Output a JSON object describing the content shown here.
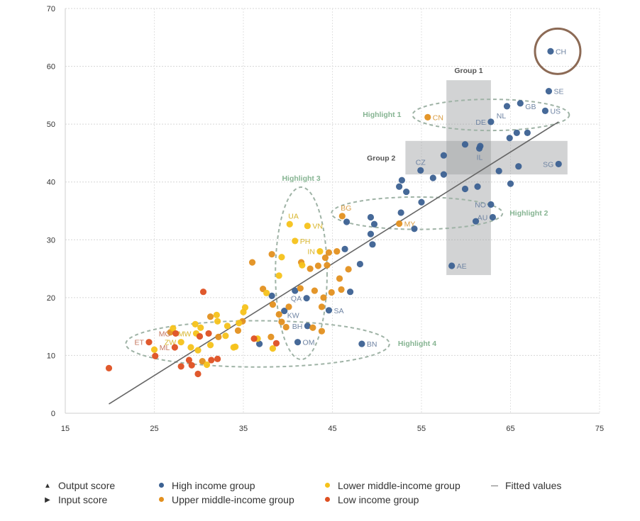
{
  "chart_data": {
    "type": "scatter",
    "title": "",
    "xlabel": "",
    "ylabel": "",
    "xlim": [
      15,
      75
    ],
    "ylim": [
      0,
      70
    ],
    "x_ticks": [
      "15",
      "25",
      "35",
      "45",
      "55",
      "65",
      "75"
    ],
    "y_ticks": [
      "0",
      "10",
      "20",
      "30",
      "40",
      "50",
      "60",
      "70"
    ],
    "grid": true,
    "legend_position": "bottom",
    "colors": {
      "high": "#3c6192",
      "upper": "#e3901f",
      "lower": "#f6c21a",
      "low": "#de5022",
      "fit": "#666666",
      "highlight": "#86b492",
      "group": "#9c9da0",
      "ch_circle": "#8c6a55"
    },
    "series": [
      {
        "name": "High income group",
        "key": "high",
        "points": [
          [
            69.5,
            62.6,
            "CH"
          ],
          [
            69.3,
            55.7,
            "SE"
          ],
          [
            66.1,
            53.6,
            "GB"
          ],
          [
            64.6,
            53.1,
            "NL"
          ],
          [
            68.9,
            52.3,
            "US"
          ],
          [
            62.8,
            50.4,
            "DE"
          ],
          [
            64.9,
            47.6,
            ""
          ],
          [
            65.7,
            48.5,
            ""
          ],
          [
            66.9,
            48.5,
            ""
          ],
          [
            59.9,
            46.5,
            ""
          ],
          [
            61.6,
            46.2,
            ""
          ],
          [
            61.5,
            45.8,
            "IL"
          ],
          [
            57.5,
            44.6,
            ""
          ],
          [
            57.5,
            41.3,
            ""
          ],
          [
            56.3,
            40.7,
            ""
          ],
          [
            54.9,
            42.0,
            "CZ"
          ],
          [
            59.9,
            38.8,
            ""
          ],
          [
            61.3,
            39.2,
            ""
          ],
          [
            63.7,
            41.9,
            ""
          ],
          [
            65.9,
            42.7,
            ""
          ],
          [
            65.0,
            39.7,
            ""
          ],
          [
            70.4,
            43.1,
            "SG"
          ],
          [
            52.8,
            40.3,
            ""
          ],
          [
            52.5,
            39.2,
            ""
          ],
          [
            53.3,
            38.3,
            ""
          ],
          [
            55.0,
            36.5,
            ""
          ],
          [
            52.7,
            34.7,
            ""
          ],
          [
            49.7,
            32.7,
            ""
          ],
          [
            49.3,
            33.9,
            ""
          ],
          [
            49.3,
            31.0,
            ""
          ],
          [
            49.5,
            29.2,
            ""
          ],
          [
            46.4,
            28.4,
            ""
          ],
          [
            48.1,
            25.8,
            ""
          ],
          [
            46.6,
            33.1,
            ""
          ],
          [
            54.2,
            31.9,
            ""
          ],
          [
            62.8,
            36.1,
            "NO"
          ],
          [
            63.0,
            33.9,
            "AU"
          ],
          [
            61.1,
            33.2,
            ""
          ],
          [
            58.4,
            25.5,
            "AE"
          ],
          [
            47.0,
            21.0,
            ""
          ],
          [
            42.1,
            19.9,
            "QA"
          ],
          [
            40.8,
            21.2,
            ""
          ],
          [
            38.2,
            20.3,
            ""
          ],
          [
            44.6,
            17.8,
            "SA"
          ],
          [
            39.6,
            17.7,
            "KW"
          ],
          [
            42.2,
            15.1,
            "BH"
          ],
          [
            41.1,
            12.3,
            "OM"
          ],
          [
            36.8,
            12.0,
            ""
          ],
          [
            48.3,
            12.0,
            "BN"
          ]
        ]
      },
      {
        "name": "Upper middle-income group",
        "key": "upper",
        "points": [
          [
            55.7,
            51.2,
            "CN"
          ],
          [
            46.1,
            34.1,
            "BG"
          ],
          [
            52.5,
            32.8,
            "MY"
          ],
          [
            38.2,
            27.5,
            ""
          ],
          [
            36.0,
            26.1,
            ""
          ],
          [
            41.5,
            26.1,
            ""
          ],
          [
            42.5,
            25.0,
            ""
          ],
          [
            43.4,
            25.5,
            ""
          ],
          [
            44.2,
            26.9,
            ""
          ],
          [
            44.6,
            27.8,
            ""
          ],
          [
            44.4,
            25.6,
            ""
          ],
          [
            45.5,
            28.0,
            ""
          ],
          [
            46.8,
            24.9,
            ""
          ],
          [
            45.8,
            23.3,
            ""
          ],
          [
            46.0,
            21.4,
            ""
          ],
          [
            43.0,
            21.2,
            ""
          ],
          [
            41.4,
            21.6,
            ""
          ],
          [
            37.2,
            21.5,
            ""
          ],
          [
            44.0,
            20.0,
            ""
          ],
          [
            44.9,
            20.9,
            ""
          ],
          [
            38.3,
            18.8,
            ""
          ],
          [
            40.1,
            18.4,
            ""
          ],
          [
            43.8,
            18.4,
            ""
          ],
          [
            39.0,
            17.1,
            ""
          ],
          [
            39.3,
            15.8,
            ""
          ],
          [
            39.8,
            14.9,
            ""
          ],
          [
            42.8,
            14.8,
            ""
          ],
          [
            43.8,
            14.2,
            ""
          ],
          [
            38.1,
            13.2,
            ""
          ],
          [
            34.4,
            14.3,
            ""
          ],
          [
            34.9,
            15.9,
            ""
          ],
          [
            31.3,
            16.7,
            ""
          ],
          [
            32.2,
            13.2,
            ""
          ],
          [
            30.4,
            9.0,
            ""
          ],
          [
            26.8,
            14.0,
            ""
          ]
        ]
      },
      {
        "name": "Lower middle-income group",
        "key": "lower",
        "points": [
          [
            40.2,
            32.7,
            "UA"
          ],
          [
            42.2,
            32.4,
            "VN"
          ],
          [
            40.8,
            29.8,
            "PH"
          ],
          [
            43.6,
            28.0,
            "IN"
          ],
          [
            39.3,
            27.0,
            ""
          ],
          [
            41.6,
            25.6,
            ""
          ],
          [
            39.0,
            23.8,
            ""
          ],
          [
            37.6,
            20.8,
            ""
          ],
          [
            35.2,
            18.3,
            ""
          ],
          [
            35.0,
            17.5,
            ""
          ],
          [
            36.6,
            12.9,
            ""
          ],
          [
            38.3,
            11.2,
            ""
          ],
          [
            34.1,
            11.5,
            ""
          ],
          [
            27.1,
            14.7,
            ""
          ],
          [
            29.6,
            15.4,
            ""
          ],
          [
            30.2,
            14.8,
            ""
          ],
          [
            29.7,
            13.8,
            "MW"
          ],
          [
            32.0,
            17.0,
            ""
          ],
          [
            32.1,
            15.9,
            ""
          ],
          [
            33.2,
            15.1,
            ""
          ],
          [
            33.0,
            13.4,
            ""
          ],
          [
            33.9,
            11.4,
            ""
          ],
          [
            31.3,
            11.8,
            ""
          ],
          [
            29.1,
            11.4,
            ""
          ],
          [
            29.9,
            10.9,
            ""
          ],
          [
            28.0,
            12.3,
            "ZW"
          ],
          [
            25.0,
            11.0,
            ""
          ],
          [
            30.9,
            8.4,
            ""
          ],
          [
            34.5,
            15.6,
            ""
          ]
        ]
      },
      {
        "name": "Low income group",
        "key": "low",
        "points": [
          [
            30.5,
            21.0,
            ""
          ],
          [
            24.4,
            12.3,
            "ET"
          ],
          [
            27.4,
            13.8,
            "MG"
          ],
          [
            27.3,
            11.4,
            "ML"
          ],
          [
            25.1,
            9.9,
            ""
          ],
          [
            19.9,
            7.8,
            ""
          ],
          [
            31.1,
            13.8,
            ""
          ],
          [
            30.1,
            13.3,
            ""
          ],
          [
            28.9,
            9.2,
            ""
          ],
          [
            29.2,
            8.3,
            ""
          ],
          [
            28.0,
            8.1,
            ""
          ],
          [
            29.9,
            6.8,
            ""
          ],
          [
            31.4,
            9.2,
            ""
          ],
          [
            32.1,
            9.4,
            ""
          ],
          [
            36.2,
            12.9,
            ""
          ],
          [
            38.7,
            12.1,
            ""
          ]
        ]
      }
    ],
    "fitted_line": {
      "name": "Fitted values",
      "x": [
        19.9,
        70.4
      ],
      "y": [
        1.6,
        50.4
      ]
    },
    "annotations": {
      "groups": [
        {
          "label": "Group 1",
          "x": [
            57.8,
            62.8
          ],
          "y": [
            23.9,
            57.6
          ]
        },
        {
          "label": "Group 2",
          "x": [
            53.2,
            71.4
          ],
          "y": [
            41.3,
            47.1
          ]
        }
      ],
      "highlights": [
        {
          "label": "Highlight 1",
          "cx": 62.8,
          "cy": 51.6,
          "dx": 8.8,
          "dy": 2.7
        },
        {
          "label": "Highlight 2",
          "cx": 54.5,
          "cy": 34.6,
          "dx": 9.6,
          "dy": 2.8
        },
        {
          "label": "Highlight 3",
          "cx": 41.5,
          "cy": 24.2,
          "dx": 2.9,
          "dy": 14.9
        },
        {
          "label": "Highlight 4",
          "cx": 36.6,
          "cy": 12.0,
          "dx": 14.8,
          "dy": 4.0
        }
      ],
      "circled": "CH"
    }
  },
  "legend": {
    "output_score": "Output score",
    "input_score": "Input score",
    "high": "High income group",
    "upper": "Upper middle-income group",
    "lower": "Lower middle-income group",
    "low": "Low income group",
    "fitted": "Fitted values"
  }
}
